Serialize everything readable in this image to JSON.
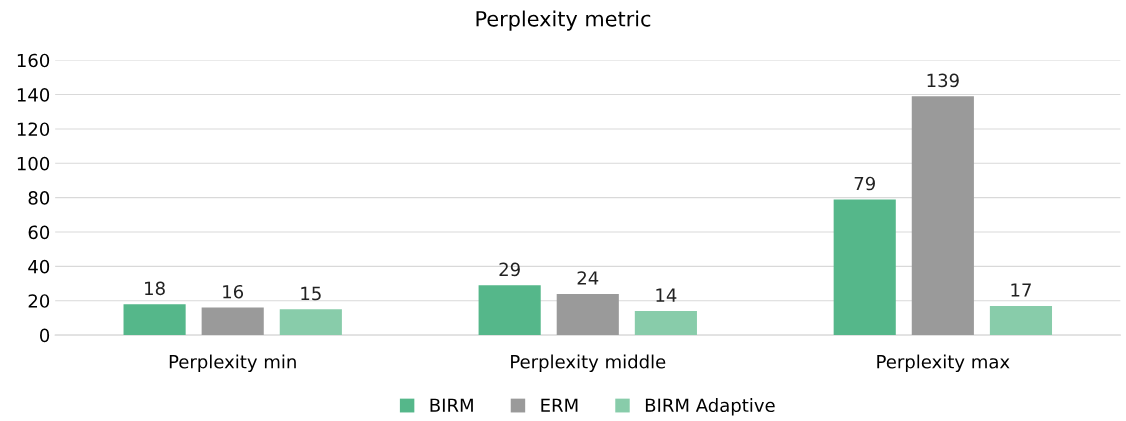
{
  "chart_data": {
    "type": "bar",
    "title": "Perplexity metric",
    "categories": [
      "Perplexity min",
      "Perplexity middle",
      "Perplexity max"
    ],
    "series": [
      {
        "name": "BIRM",
        "color": "#55b78a",
        "values": [
          18,
          29,
          79
        ]
      },
      {
        "name": "ERM",
        "color": "#9a9a9a",
        "values": [
          16,
          24,
          139
        ]
      },
      {
        "name": "BIRM Adaptive",
        "color": "#88ccaa",
        "values": [
          15,
          14,
          17
        ]
      }
    ],
    "ylim": [
      0,
      160
    ],
    "yticks": [
      0,
      20,
      40,
      60,
      80,
      100,
      120,
      140,
      160
    ],
    "grid": "y",
    "legend": "bottom",
    "data_labels": true
  }
}
